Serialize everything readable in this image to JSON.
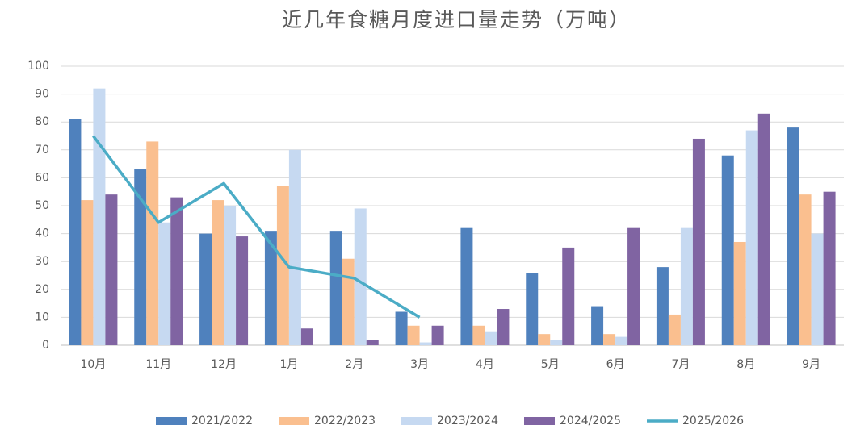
{
  "chart_data": {
    "type": "bar",
    "title": "近几年食糖月度进口量走势（万吨）",
    "categories": [
      "10月",
      "11月",
      "12月",
      "1月",
      "2月",
      "3月",
      "4月",
      "5月",
      "6月",
      "7月",
      "8月",
      "9月"
    ],
    "series": [
      {
        "name": "2021/2022",
        "color": "#4f81bd",
        "values": [
          81,
          63,
          40,
          41,
          41,
          12,
          42,
          26,
          14,
          28,
          68,
          78
        ]
      },
      {
        "name": "2022/2023",
        "color": "#fabf8f",
        "values": [
          52,
          73,
          52,
          57,
          31,
          7,
          7,
          4,
          4,
          11,
          37,
          54
        ]
      },
      {
        "name": "2023/2024",
        "color": "#c6d9f1",
        "values": [
          92,
          44,
          50,
          70,
          49,
          1,
          5,
          2,
          3,
          42,
          77,
          40
        ]
      },
      {
        "name": "2024/2025",
        "color": "#8064a2",
        "values": [
          54,
          53,
          39,
          6,
          2,
          7,
          13,
          35,
          42,
          74,
          83,
          55
        ]
      },
      {
        "name": "2025/2026",
        "color": "#4bacc6",
        "type": "line",
        "values": [
          75,
          44,
          58,
          28,
          24,
          10,
          null,
          null,
          null,
          null,
          null,
          null
        ]
      }
    ],
    "ylim": [
      0,
      100
    ],
    "yticks": [
      0,
      10,
      20,
      30,
      40,
      50,
      60,
      70,
      80,
      90,
      100
    ],
    "grid": true,
    "legend": "bottom"
  }
}
